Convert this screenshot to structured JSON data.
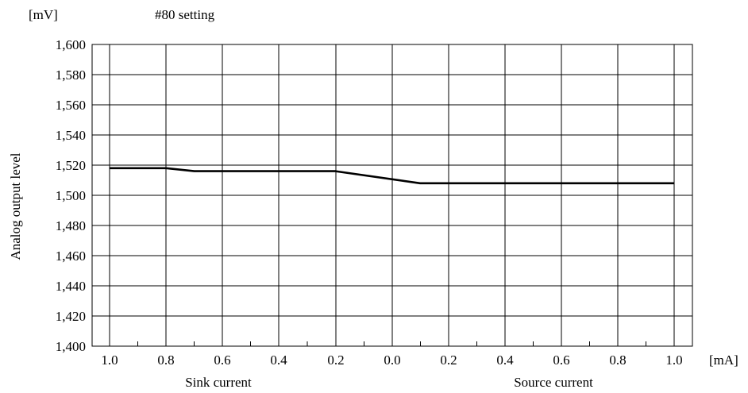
{
  "chart_data": {
    "type": "line",
    "title": "#80 setting",
    "y_unit": "[mV]",
    "x_unit": "[mA]",
    "ylabel": "Analog output level",
    "ylim": [
      1400,
      1600
    ],
    "y_ticks": [
      1400,
      1420,
      1440,
      1460,
      1480,
      1500,
      1520,
      1540,
      1560,
      1580,
      1600
    ],
    "y_tick_labels": [
      "1,400",
      "1,420",
      "1,440",
      "1,460",
      "1,480",
      "1,500",
      "1,520",
      "1,540",
      "1,560",
      "1,580",
      "1,600"
    ],
    "x_tick_labels": [
      "1.0",
      "0.8",
      "0.6",
      "0.4",
      "0.2",
      "0.0",
      "0.2",
      "0.4",
      "0.6",
      "0.8",
      "1.0"
    ],
    "x_group_labels": [
      "Sink current",
      "Source current"
    ],
    "xlim": [
      -1.0,
      1.0
    ],
    "grid": true,
    "series": [
      {
        "x": [
          -1.0,
          -0.8,
          -0.7,
          -0.2,
          0.1,
          1.0
        ],
        "y": [
          1518,
          1518,
          1516,
          1516,
          1508,
          1508
        ]
      }
    ]
  }
}
